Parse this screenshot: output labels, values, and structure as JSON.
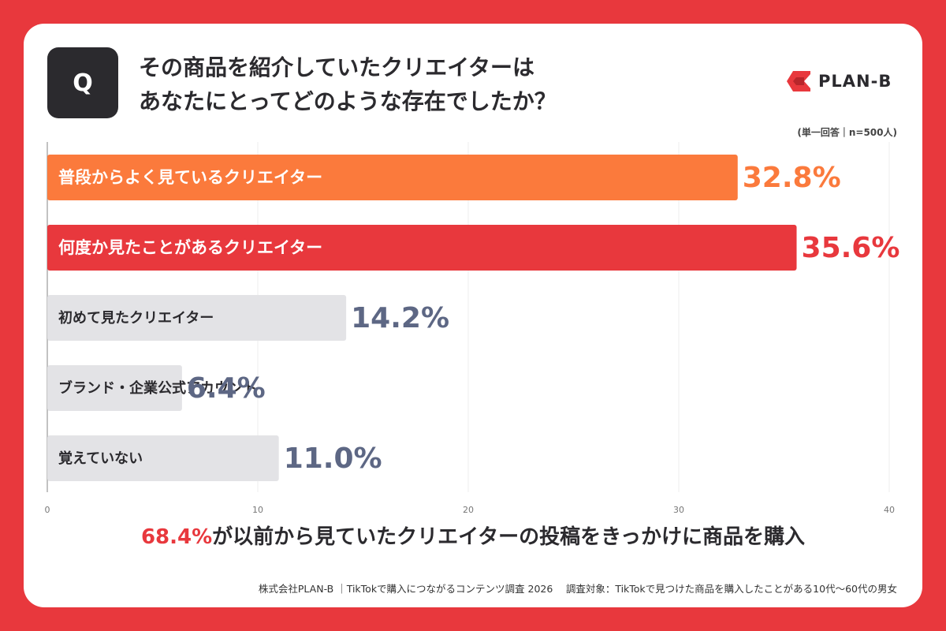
{
  "question": {
    "badge": "Q",
    "line1": "その商品を紹介していたクリエイターは",
    "line2": "あなたにとってどのような存在でしたか？"
  },
  "logo": {
    "text": "PLAN-B",
    "color": "#e8383d"
  },
  "note": "(単一回答｜n=500人)",
  "colors": {
    "background": "#e8383d",
    "bar_orange": "#fb7a3c",
    "bar_red": "#e8383d",
    "bar_gray": "#e3e3e6",
    "value_gray": "#5d6784",
    "text_dark": "#2b2a2e"
  },
  "chart_data": {
    "type": "bar",
    "orientation": "horizontal",
    "categories": [
      "普段からよく見ているクリエイター",
      "何度か見たことがあるクリエイター",
      "初めて見たクリエイター",
      "ブランド・企業公式アカウント",
      "覚えていない"
    ],
    "values": [
      32.8,
      35.6,
      14.2,
      6.4,
      11.0
    ],
    "value_labels": [
      "32.8%",
      "35.6%",
      "14.2%",
      "6.4%",
      "11.0%"
    ],
    "bar_colors": [
      "#fb7a3c",
      "#e8383d",
      "#e3e3e6",
      "#e3e3e6",
      "#e3e3e6"
    ],
    "label_colors": [
      "#ffffff",
      "#ffffff",
      "#2b2a2e",
      "#2b2a2e",
      "#2b2a2e"
    ],
    "value_colors": [
      "#fb7a3c",
      "#e8383d",
      "#5d6784",
      "#5d6784",
      "#5d6784"
    ],
    "xlim": [
      0,
      40
    ],
    "x_ticks": [
      "0",
      "10",
      "20",
      "30",
      "40"
    ],
    "grid": true
  },
  "conclusion": {
    "highlight": "68.4%",
    "rest": "が以前から見ていたクリエイターの投稿をきっかけに商品を購入"
  },
  "source": "株式会社PLAN-B ｜TikTokで購入につながるコンテンツ調査 2026　 調査対象：TikTokで見つけた商品を購入したことがある10代〜60代の男女"
}
